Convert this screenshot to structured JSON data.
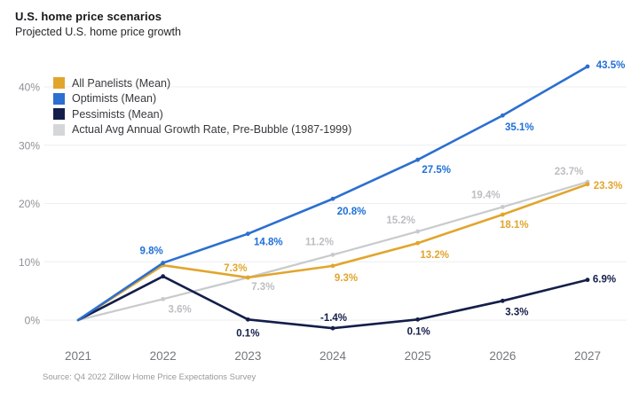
{
  "header": {
    "title": "U.S. home price scenarios",
    "subtitle": "Projected U.S. home price growth"
  },
  "source_note": "Source: Q4 2022 Zillow Home Price Expectations Survey",
  "chart_data": {
    "type": "line",
    "title": "U.S. home price scenarios",
    "subtitle": "Projected U.S. home price growth",
    "x": [
      "2021",
      "2022",
      "2023",
      "2024",
      "2025",
      "2026",
      "2027"
    ],
    "y_axis": {
      "tick_labels": [
        "0%",
        "10%",
        "20%",
        "30%",
        "40%"
      ],
      "tick_values": [
        0,
        10,
        20,
        30,
        40
      ],
      "ylim": [
        -4,
        46
      ]
    },
    "grid": true,
    "legend_position": "top-left",
    "series": [
      {
        "name": "All Panelists (Mean)",
        "color": "#E2A52C",
        "label_color": "#E2A52C",
        "values": [
          0,
          9.4,
          7.3,
          9.3,
          13.2,
          18.1,
          23.3
        ],
        "point_labels": [
          "",
          "",
          "7.3%",
          "9.3%",
          "13.2%",
          "18.1%",
          "23.3%"
        ]
      },
      {
        "name": "Optimists (Mean)",
        "color": "#2B6FD0",
        "label_color": "#1E6FD8",
        "values": [
          0,
          9.8,
          14.8,
          20.8,
          27.5,
          35.1,
          43.5
        ],
        "point_labels": [
          "",
          "9.8%",
          "14.8%",
          "20.8%",
          "27.5%",
          "35.1%",
          "43.5%"
        ]
      },
      {
        "name": "Pessimists (Mean)",
        "color": "#141E4A",
        "label_color": "#141E4A",
        "values": [
          0,
          7.5,
          0.1,
          -1.4,
          0.1,
          3.3,
          6.9
        ],
        "point_labels": [
          "",
          "",
          "0.1%",
          "-1.4%",
          "0.1%",
          "3.3%",
          "6.9%"
        ]
      },
      {
        "name": "Actual Avg Annual Growth Rate, Pre-Bubble (1987-1999)",
        "color": "#C8CACC",
        "swatch_color": "#D4D6D8",
        "label_color": "#BCBEC1",
        "values": [
          0,
          3.6,
          7.3,
          11.2,
          15.2,
          19.4,
          23.7
        ],
        "point_labels": [
          "",
          "3.6%",
          "7.3%",
          "11.2%",
          "15.2%",
          "19.4%",
          "23.7%"
        ]
      }
    ]
  }
}
